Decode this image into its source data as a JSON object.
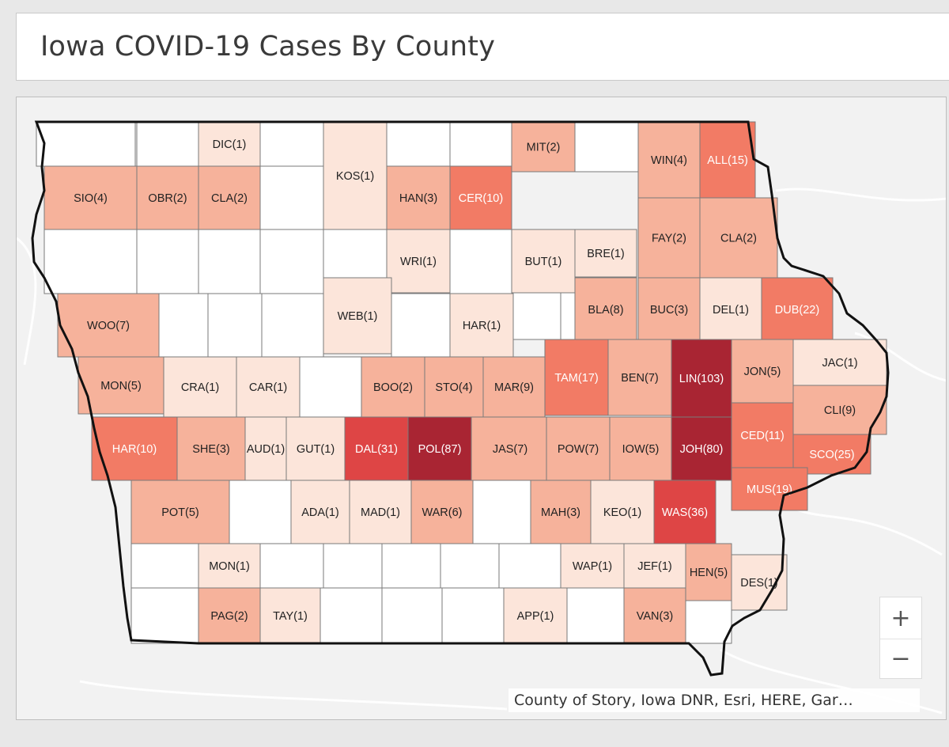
{
  "title": "Iowa COVID-19 Cases By County",
  "attribution": "County of Story, Iowa DNR, Esri, HERE, Gar…",
  "zoom": {
    "in_label": "+",
    "out_label": "−"
  },
  "legend_colors": {
    "none": "#ffffff",
    "1": "#fce5da",
    "2-9": "#f6b29b",
    "10-25": "#f27b65",
    "26-50": "#de4545",
    "51+": "#a92533"
  },
  "counties": [
    {
      "code": "DIC",
      "cases": 1,
      "label": "DIC(1)"
    },
    {
      "code": "KOS",
      "cases": 1,
      "label": "KOS(1)"
    },
    {
      "code": "MIT",
      "cases": 2,
      "label": "MIT(2)"
    },
    {
      "code": "WIN",
      "cases": 4,
      "label": "WIN(4)"
    },
    {
      "code": "ALL",
      "cases": 15,
      "label": "ALL(15)"
    },
    {
      "code": "SIO",
      "cases": 4,
      "label": "SIO(4)"
    },
    {
      "code": "OBR",
      "cases": 2,
      "label": "OBR(2)"
    },
    {
      "code": "CLA",
      "cases": 2,
      "label": "CLA(2)"
    },
    {
      "code": "HAN",
      "cases": 3,
      "label": "HAN(3)"
    },
    {
      "code": "CER",
      "cases": 10,
      "label": "CER(10)"
    },
    {
      "code": "FAY",
      "cases": 2,
      "label": "FAY(2)"
    },
    {
      "code": "CLA",
      "cases": 2,
      "label": "CLA(2)"
    },
    {
      "code": "WRI",
      "cases": 1,
      "label": "WRI(1)"
    },
    {
      "code": "BUT",
      "cases": 1,
      "label": "BUT(1)"
    },
    {
      "code": "BRE",
      "cases": 1,
      "label": "BRE(1)"
    },
    {
      "code": "BLA",
      "cases": 8,
      "label": "BLA(8)"
    },
    {
      "code": "BUC",
      "cases": 3,
      "label": "BUC(3)"
    },
    {
      "code": "DEL",
      "cases": 1,
      "label": "DEL(1)"
    },
    {
      "code": "DUB",
      "cases": 22,
      "label": "DUB(22)"
    },
    {
      "code": "WOO",
      "cases": 7,
      "label": "WOO(7)"
    },
    {
      "code": "WEB",
      "cases": 1,
      "label": "WEB(1)"
    },
    {
      "code": "HAR",
      "cases": 1,
      "label": "HAR(1)"
    },
    {
      "code": "MON",
      "cases": 5,
      "label": "MON(5)"
    },
    {
      "code": "CRA",
      "cases": 1,
      "label": "CRA(1)"
    },
    {
      "code": "CAR",
      "cases": 1,
      "label": "CAR(1)"
    },
    {
      "code": "BOO",
      "cases": 2,
      "label": "BOO(2)"
    },
    {
      "code": "STO",
      "cases": 4,
      "label": "STO(4)"
    },
    {
      "code": "MAR",
      "cases": 9,
      "label": "MAR(9)"
    },
    {
      "code": "TAM",
      "cases": 17,
      "label": "TAM(17)"
    },
    {
      "code": "BEN",
      "cases": 7,
      "label": "BEN(7)"
    },
    {
      "code": "LIN",
      "cases": 103,
      "label": "LIN(103)"
    },
    {
      "code": "JON",
      "cases": 5,
      "label": "JON(5)"
    },
    {
      "code": "JAC",
      "cases": 1,
      "label": "JAC(1)"
    },
    {
      "code": "CLI",
      "cases": 9,
      "label": "CLI(9)"
    },
    {
      "code": "HAR",
      "cases": 10,
      "label": "HAR(10)"
    },
    {
      "code": "SHE",
      "cases": 3,
      "label": "SHE(3)"
    },
    {
      "code": "AUD",
      "cases": 1,
      "label": "AUD(1)"
    },
    {
      "code": "GUT",
      "cases": 1,
      "label": "GUT(1)"
    },
    {
      "code": "DAL",
      "cases": 31,
      "label": "DAL(31)"
    },
    {
      "code": "POL",
      "cases": 87,
      "label": "POL(87)"
    },
    {
      "code": "JAS",
      "cases": 7,
      "label": "JAS(7)"
    },
    {
      "code": "POW",
      "cases": 7,
      "label": "POW(7)"
    },
    {
      "code": "IOW",
      "cases": 5,
      "label": "IOW(5)"
    },
    {
      "code": "JOH",
      "cases": 80,
      "label": "JOH(80)"
    },
    {
      "code": "CED",
      "cases": 11,
      "label": "CED(11)"
    },
    {
      "code": "SCO",
      "cases": 25,
      "label": "SCO(25)"
    },
    {
      "code": "MUS",
      "cases": 19,
      "label": "MUS(19)"
    },
    {
      "code": "POT",
      "cases": 5,
      "label": "POT(5)"
    },
    {
      "code": "ADA",
      "cases": 1,
      "label": "ADA(1)"
    },
    {
      "code": "MAD",
      "cases": 1,
      "label": "MAD(1)"
    },
    {
      "code": "WAR",
      "cases": 6,
      "label": "WAR(6)"
    },
    {
      "code": "MAH",
      "cases": 3,
      "label": "MAH(3)"
    },
    {
      "code": "KEO",
      "cases": 1,
      "label": "KEO(1)"
    },
    {
      "code": "WAS",
      "cases": 36,
      "label": "WAS(36)"
    },
    {
      "code": "MON",
      "cases": 1,
      "label": "MON(1)"
    },
    {
      "code": "WAP",
      "cases": 1,
      "label": "WAP(1)"
    },
    {
      "code": "JEF",
      "cases": 1,
      "label": "JEF(1)"
    },
    {
      "code": "HEN",
      "cases": 5,
      "label": "HEN(5)"
    },
    {
      "code": "DES",
      "cases": 1,
      "label": "DES(1)"
    },
    {
      "code": "PAG",
      "cases": 2,
      "label": "PAG(2)"
    },
    {
      "code": "TAY",
      "cases": 1,
      "label": "TAY(1)"
    },
    {
      "code": "APP",
      "cases": 1,
      "label": "APP(1)"
    },
    {
      "code": "VAN",
      "cases": 3,
      "label": "VAN(3)"
    }
  ]
}
